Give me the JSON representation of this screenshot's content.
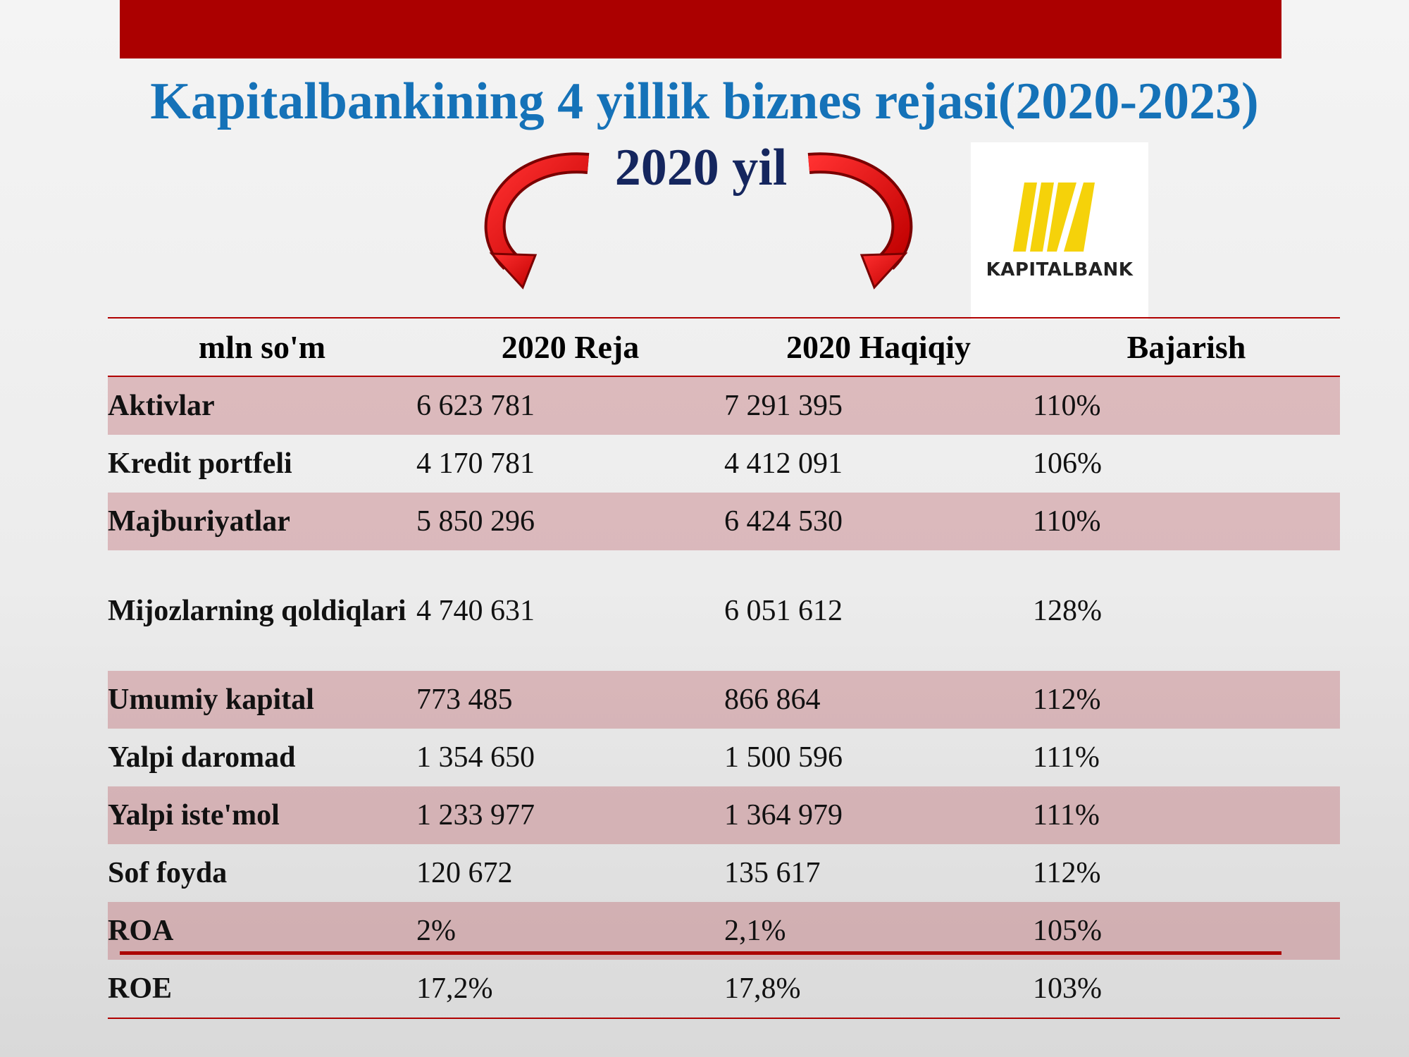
{
  "header": {
    "title": "Kapitalbankining 4 yillik biznes rejasi(2020-2023)",
    "subtitle": "2020 yil",
    "logo_text": "KAPITALBANK"
  },
  "table": {
    "header": [
      "mln so'm",
      "2020 Reja",
      "2020 Haqiqiy",
      "Bajarish"
    ],
    "rows": [
      [
        "Aktivlar",
        "6 623 781",
        "7 291 395",
        "110%"
      ],
      [
        "Kredit portfeli",
        "4 170 781",
        "4 412 091",
        "106%"
      ],
      [
        "Majburiyatlar",
        "5 850 296",
        "6 424 530",
        "110%"
      ],
      [
        "Mijozlarning qoldiqlari",
        "4 740 631",
        "6 051 612",
        "128%"
      ],
      [
        "Umumiy kapital",
        "773 485",
        "866 864",
        "112%"
      ],
      [
        "Yalpi daromad",
        "1 354 650",
        "1 500 596",
        "111%"
      ],
      [
        "Yalpi iste'mol",
        "1 233 977",
        "1 364 979",
        "111%"
      ],
      [
        "Sof foyda",
        "120 672",
        "135 617",
        "112%"
      ],
      [
        "ROA",
        "2%",
        "2,1%",
        "105%"
      ],
      [
        "ROE",
        "17,2%",
        "17,8%",
        "103%"
      ]
    ]
  }
}
